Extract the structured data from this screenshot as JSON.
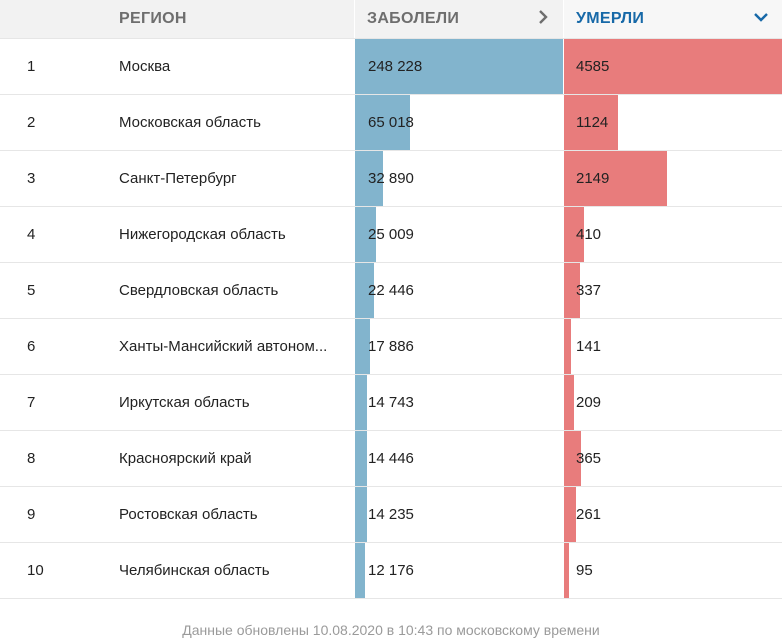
{
  "headers": {
    "region": "РЕГИОН",
    "cases": "ЗАБОЛЕЛИ",
    "deaths": "УМЕРЛИ"
  },
  "icons": {
    "cases_sort": "chevron-right-icon",
    "deaths_sort": "chevron-down-icon"
  },
  "colors": {
    "cases_bar": "#82b4cd",
    "deaths_bar": "#e87c7c",
    "active_header": "#1769a8"
  },
  "rows": [
    {
      "num": "1",
      "region": "Москва",
      "cases": "248 228",
      "deaths": "4585",
      "cases_n": 248228,
      "deaths_n": 4585
    },
    {
      "num": "2",
      "region": "Московская область",
      "cases": "65 018",
      "deaths": "1124",
      "cases_n": 65018,
      "deaths_n": 1124
    },
    {
      "num": "3",
      "region": "Санкт-Петербург",
      "cases": "32 890",
      "deaths": "2149",
      "cases_n": 32890,
      "deaths_n": 2149
    },
    {
      "num": "4",
      "region": "Нижегородская область",
      "cases": "25 009",
      "deaths": "410",
      "cases_n": 25009,
      "deaths_n": 410
    },
    {
      "num": "5",
      "region": "Свердловская область",
      "cases": "22 446",
      "deaths": "337",
      "cases_n": 22446,
      "deaths_n": 337
    },
    {
      "num": "6",
      "region": "Ханты-Мансийский автоном...",
      "cases": "17 886",
      "deaths": "141",
      "cases_n": 17886,
      "deaths_n": 141
    },
    {
      "num": "7",
      "region": "Иркутская область",
      "cases": "14 743",
      "deaths": "209",
      "cases_n": 14743,
      "deaths_n": 209
    },
    {
      "num": "8",
      "region": "Красноярский край",
      "cases": "14 446",
      "deaths": "365",
      "cases_n": 14446,
      "deaths_n": 365
    },
    {
      "num": "9",
      "region": "Ростовская область",
      "cases": "14 235",
      "deaths": "261",
      "cases_n": 14235,
      "deaths_n": 261
    },
    {
      "num": "10",
      "region": "Челябинская область",
      "cases": "12 176",
      "deaths": "95",
      "cases_n": 12176,
      "deaths_n": 95
    }
  ],
  "footer": "Данные обновлены 10.08.2020 в 10:43 по московскому времени"
}
